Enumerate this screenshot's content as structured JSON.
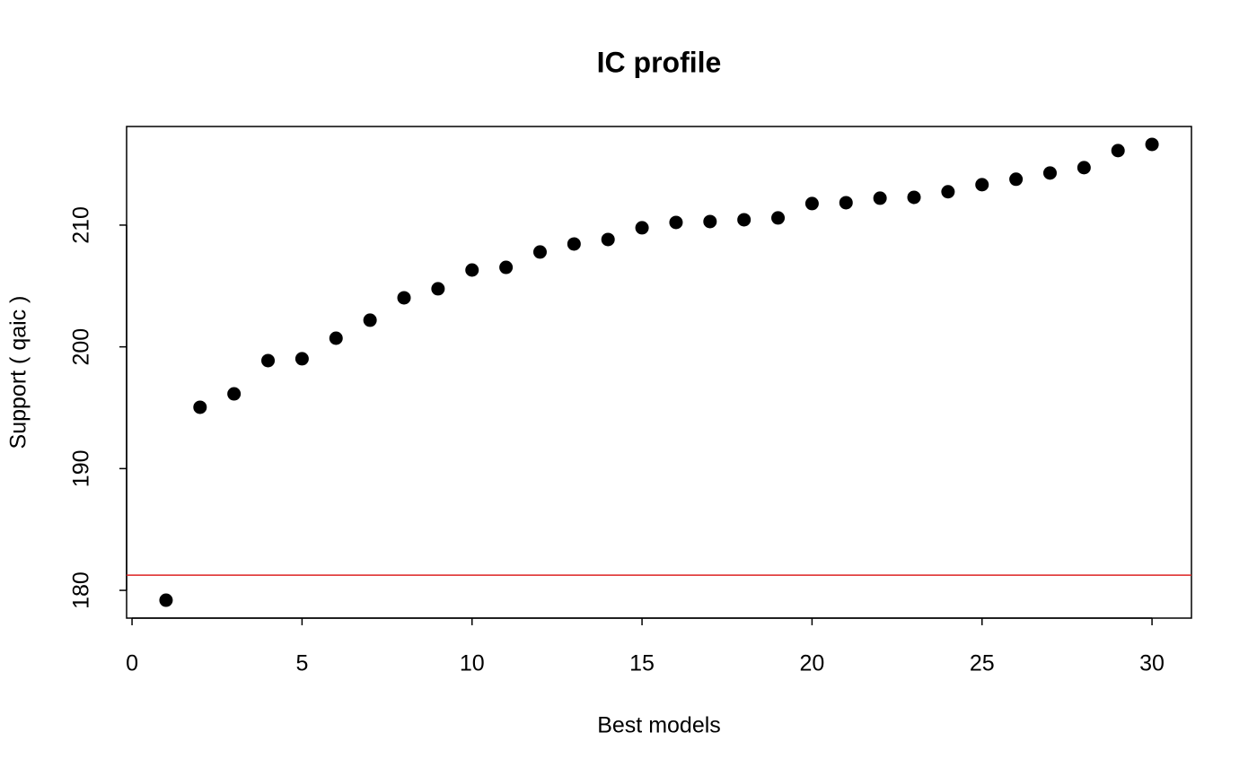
{
  "chart_data": {
    "type": "scatter",
    "title": "IC profile",
    "x_label": "Best models",
    "y_label": "Support ( qaic )",
    "x": [
      1,
      2,
      3,
      4,
      5,
      6,
      7,
      8,
      9,
      10,
      11,
      12,
      13,
      14,
      15,
      16,
      17,
      18,
      19,
      20,
      21,
      22,
      23,
      24,
      25,
      26,
      27,
      28,
      29,
      30
    ],
    "values": [
      179.19,
      195.04,
      196.14,
      198.87,
      199.02,
      200.71,
      202.19,
      204.03,
      204.77,
      206.31,
      206.53,
      207.79,
      208.45,
      208.82,
      209.78,
      210.22,
      210.29,
      210.44,
      210.59,
      211.77,
      211.84,
      212.21,
      212.28,
      212.74,
      213.32,
      213.77,
      214.28,
      214.72,
      216.12,
      216.63
    ],
    "color": "#000000",
    "hline": 181.25,
    "hline_color": "#dd2222",
    "xlim": [
      -0.16,
      31.16
    ],
    "ylim": [
      177.72,
      218.1
    ],
    "xticks": [
      0,
      5,
      10,
      15,
      20,
      25,
      30
    ],
    "yticks": [
      180,
      190,
      200,
      210
    ],
    "grid": false
  }
}
